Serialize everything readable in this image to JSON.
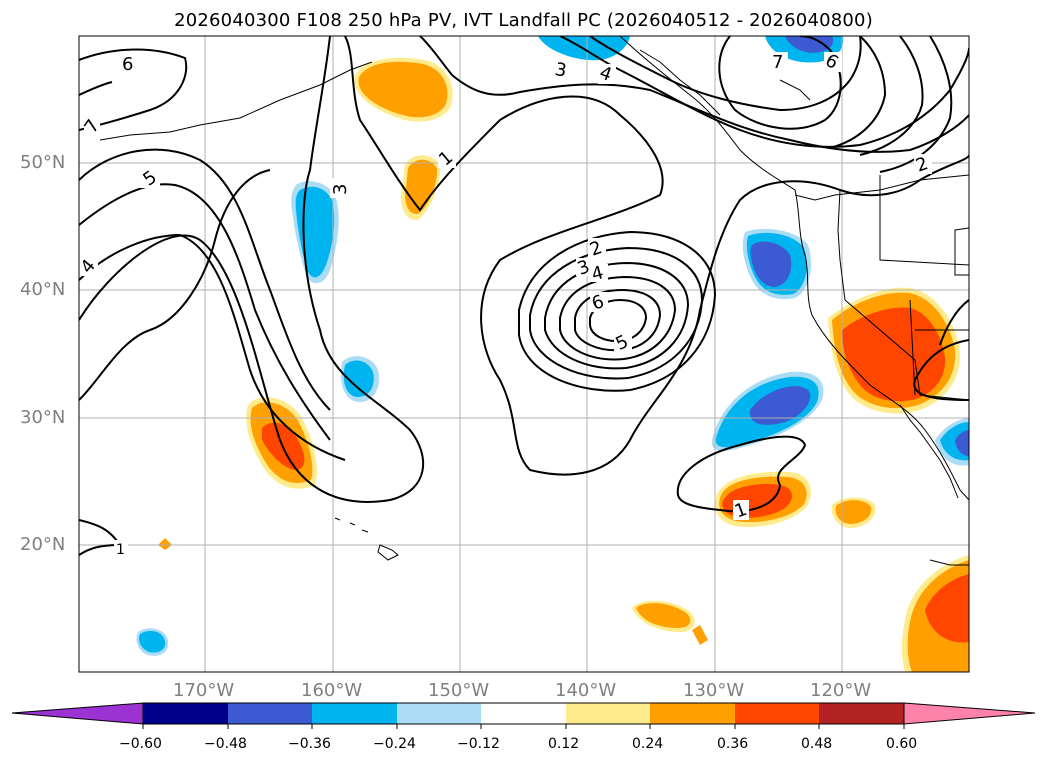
{
  "title": "2026040300 F108 250 hPa PV, IVT Landfall PC (2026040512 - 2026040800)",
  "lat_labels": [
    "50°N",
    "40°N",
    "30°N",
    "20°N"
  ],
  "lon_labels": [
    "170°W",
    "160°W",
    "150°W",
    "140°W",
    "130°W",
    "120°W"
  ],
  "contour_labels": [
    "6",
    "7",
    "5",
    "4",
    "3",
    "1",
    "3",
    "4",
    "7",
    "6",
    "2",
    "2",
    "3",
    "4",
    "6",
    "5",
    "1",
    "1"
  ],
  "colorbar": {
    "ticks": [
      "−0.60",
      "−0.48",
      "−0.36",
      "−0.24",
      "−0.12",
      "0.12",
      "0.24",
      "0.36",
      "0.48",
      "0.60"
    ],
    "colors": [
      "#9b32d2",
      "#00008c",
      "#3c5ad2",
      "#00b4f0",
      "#aadcf5",
      "#ffffff",
      "#ffeb8c",
      "#ffa000",
      "#ff4600",
      "#b42323",
      "#ff82aa"
    ]
  }
}
